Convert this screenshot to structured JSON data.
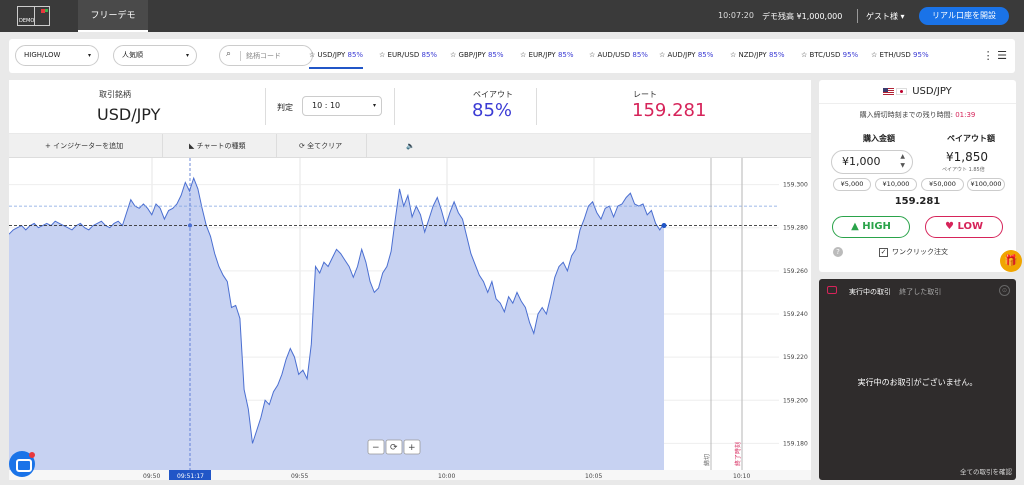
{
  "topbar": {
    "logo_text": "DEMO",
    "mode_tab": "フリーデモ",
    "clock": "10:07:20",
    "balance": "デモ残高 ¥1,000,000",
    "guest": "ゲスト様 ▾",
    "real_account_button": "リアル口座を開設"
  },
  "assetbar": {
    "type_select": "HIGH/LOW",
    "sort_select": "人気順",
    "search_placeholder": "銘柄コード",
    "pairs": [
      {
        "name": "USD/JPY",
        "pct": "85%"
      },
      {
        "name": "EUR/USD",
        "pct": "85%"
      },
      {
        "name": "GBP/JPY",
        "pct": "85%"
      },
      {
        "name": "EUR/JPY",
        "pct": "85%"
      },
      {
        "name": "AUD/USD",
        "pct": "85%"
      },
      {
        "name": "AUD/JPY",
        "pct": "85%"
      },
      {
        "name": "NZD/JPY",
        "pct": "85%"
      },
      {
        "name": "BTC/USD",
        "pct": "95%"
      },
      {
        "name": "ETH/USD",
        "pct": "95%"
      }
    ]
  },
  "info": {
    "asset_label": "取引銘柄",
    "asset": "USD/JPY",
    "expiry_label": "判定",
    "expiry": "10 : 10",
    "payout_label": "ペイアウト",
    "payout": "85%",
    "rate_label": "レート",
    "rate": "159.281"
  },
  "toolbar": {
    "add_indicator": "+ インジケーターを追加",
    "chart_type": "チャートの種類",
    "clear_all": "全てクリア"
  },
  "chart_data": {
    "type": "area",
    "ylim": [
      159.17,
      159.31
    ],
    "yticks": [
      "159.300",
      "159.280",
      "159.260",
      "159.240",
      "159.220",
      "159.200",
      "159.180"
    ],
    "xticks": [
      "09:50",
      "09:55",
      "10:00",
      "10:05",
      "10:10"
    ],
    "x_highlight": "09:51:17",
    "current_rate": "159.281",
    "line_labels": [
      "締切",
      "終了時刻"
    ],
    "values": [
      159.277,
      159.279,
      159.28,
      159.281,
      159.279,
      159.281,
      159.282,
      159.28,
      159.281,
      159.282,
      159.281,
      159.283,
      159.282,
      159.281,
      159.28,
      159.279,
      159.281,
      159.282,
      159.28,
      159.279,
      159.281,
      159.282,
      159.283,
      159.281,
      159.28,
      159.282,
      159.283,
      159.281,
      159.287,
      159.293,
      159.29,
      159.289,
      159.291,
      159.289,
      159.286,
      159.291,
      159.289,
      159.284,
      159.288,
      159.289,
      159.291,
      159.295,
      159.301,
      159.297,
      159.303,
      159.298,
      159.289,
      159.281,
      159.276,
      159.268,
      159.262,
      159.258,
      159.255,
      159.243,
      159.244,
      159.238,
      159.205,
      159.196,
      159.18,
      159.186,
      159.192,
      159.2,
      159.198,
      159.204,
      159.207,
      159.212,
      159.219,
      159.224,
      159.22,
      159.212,
      159.214,
      159.21,
      159.226,
      159.262,
      159.259,
      159.264,
      159.262,
      159.266,
      159.27,
      159.268,
      159.265,
      159.262,
      159.257,
      159.262,
      159.27,
      159.264,
      159.255,
      159.25,
      159.252,
      159.259,
      159.262,
      159.269,
      159.284,
      159.298,
      159.29,
      159.295,
      159.285,
      159.29,
      159.286,
      159.278,
      159.284,
      159.29,
      159.294,
      159.288,
      159.281,
      159.287,
      159.292,
      159.287,
      159.284,
      159.276,
      159.268,
      159.263,
      159.258,
      159.255,
      159.25,
      159.255,
      159.247,
      159.245,
      159.241,
      159.248,
      159.245,
      159.25,
      159.246,
      159.243,
      159.236,
      159.231,
      159.24,
      159.243,
      159.24,
      159.248,
      159.257,
      159.262,
      159.264,
      159.26,
      159.267,
      159.27,
      159.279,
      159.284,
      159.29,
      159.292,
      159.287,
      159.284,
      159.289,
      159.29,
      159.285,
      159.29,
      159.291,
      159.294,
      159.296,
      159.291,
      159.29,
      159.291,
      159.286,
      159.288,
      159.282,
      159.279,
      159.282
    ]
  },
  "panel": {
    "title": "USD/JPY",
    "deadline_label": "購入締切時刻までの残り時間:",
    "deadline_time": "01:39",
    "amount_label": "購入金額",
    "payout_label": "ペイアウト額",
    "amount": "¥1,000",
    "payout_amount": "¥1,850",
    "payout_sub": "ペイアウト 1.85倍",
    "quick_amounts": [
      "¥5,000",
      "¥10,000",
      "¥50,000",
      "¥100,000"
    ],
    "rate": "159.281",
    "high": "HIGH",
    "low": "LOW",
    "oneclick": "ワンクリック注文"
  },
  "trades": {
    "tab_active": "実行中の取引",
    "tab_inactive": "終了した取引",
    "empty": "実行中のお取引がございません。",
    "confirm": "全ての取引を確認"
  }
}
